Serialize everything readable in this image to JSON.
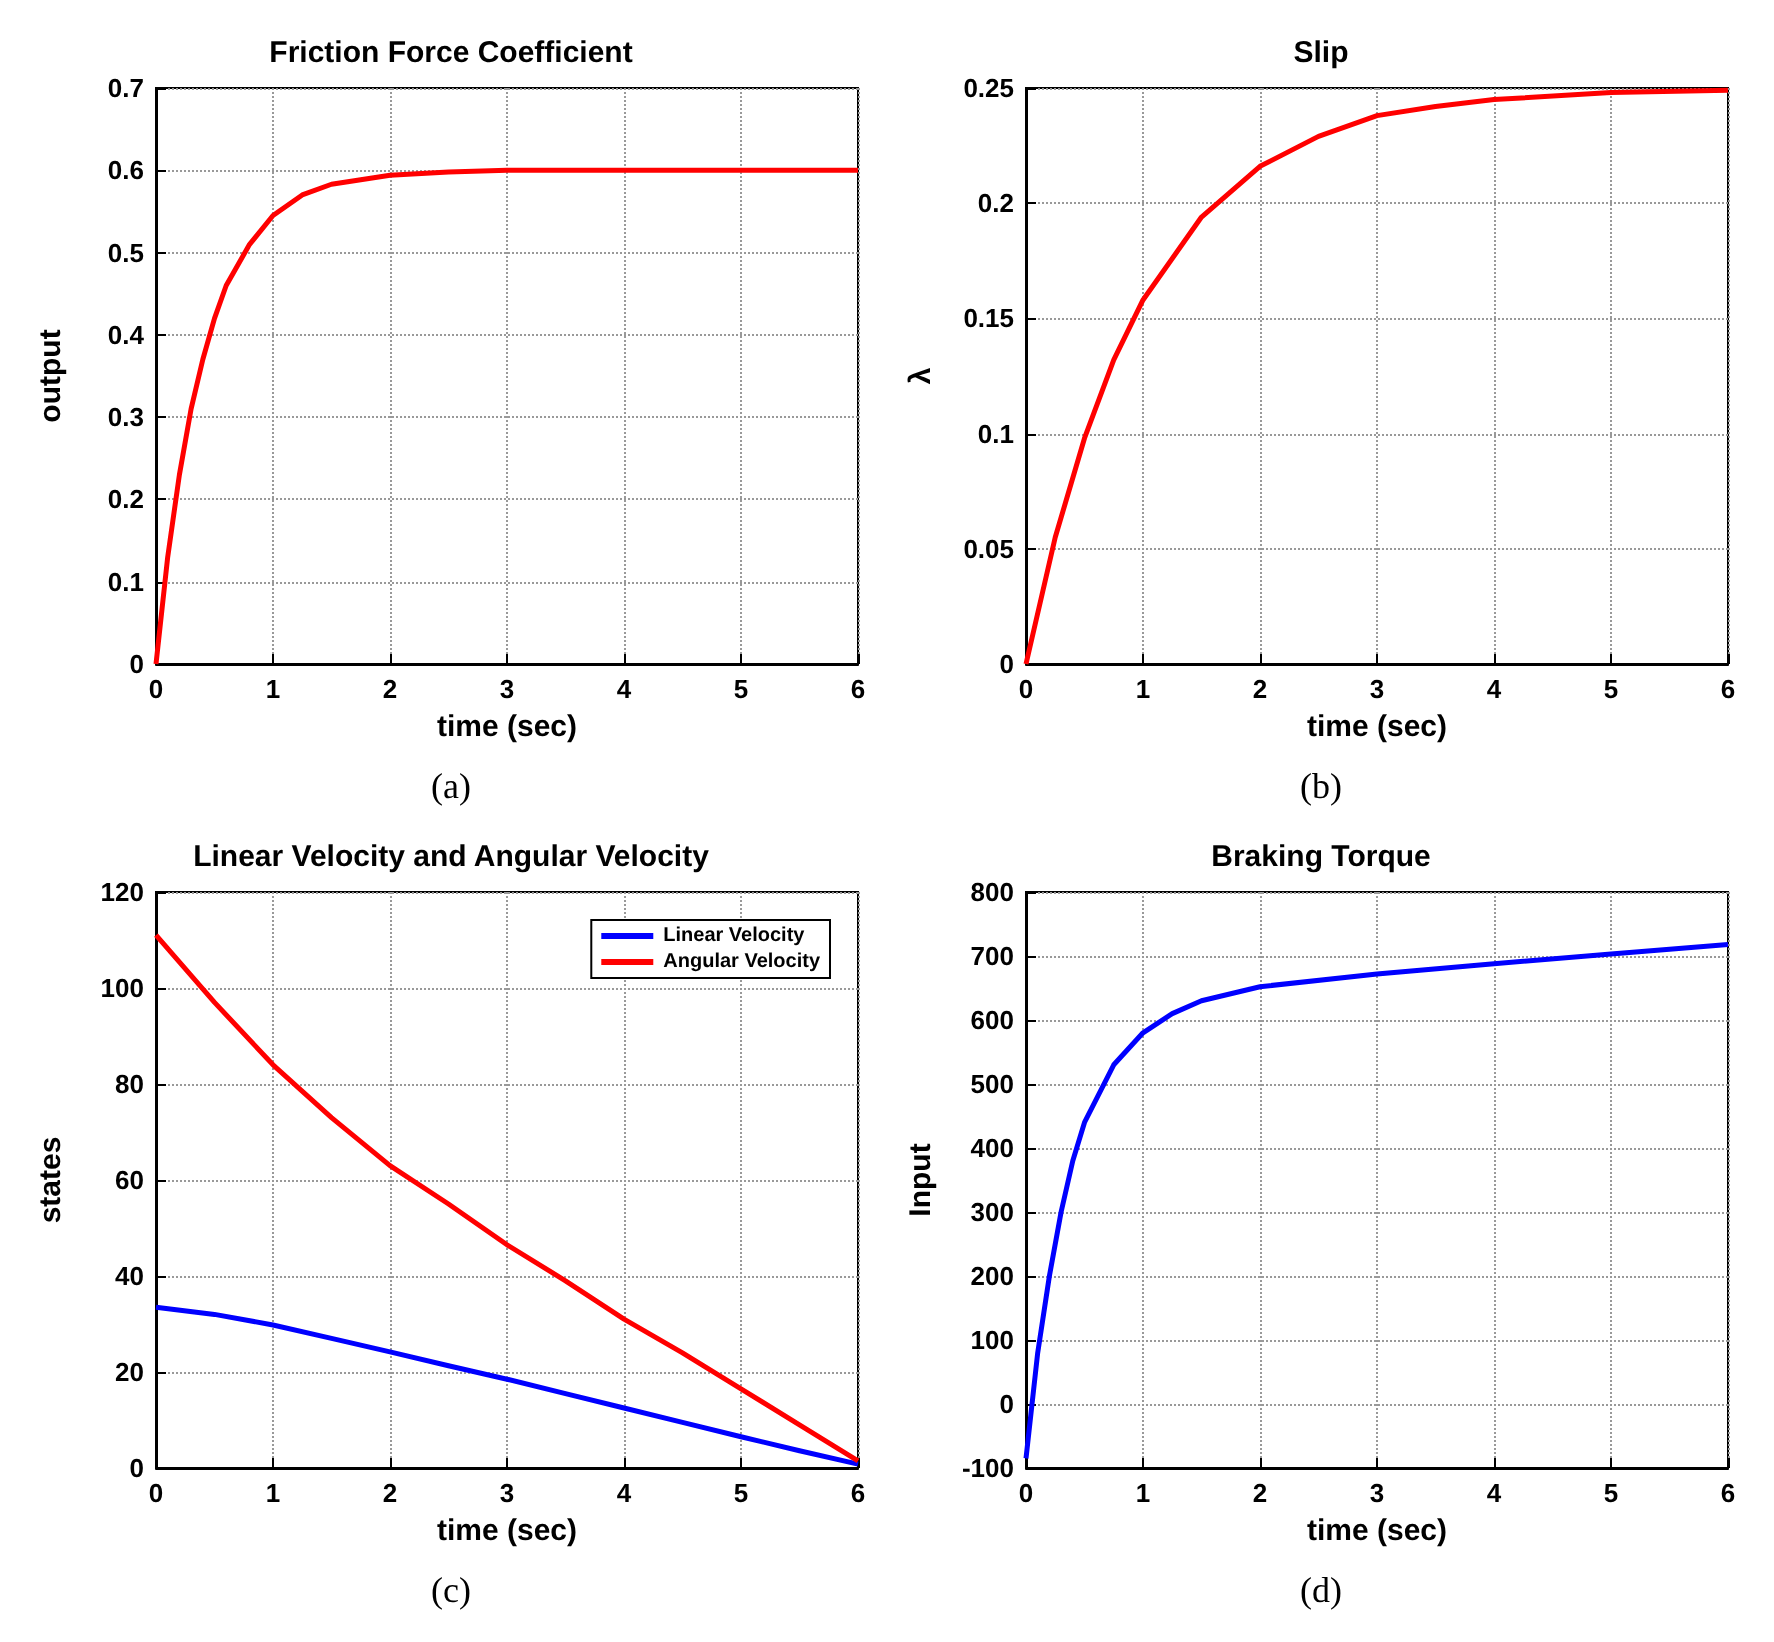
{
  "chart_data": [
    {
      "type": "line",
      "title": "Friction Force Coefficient",
      "xlabel": "time (sec)",
      "ylabel": "output",
      "x": [
        0,
        0.1,
        0.2,
        0.3,
        0.4,
        0.5,
        0.6,
        0.8,
        1,
        1.25,
        1.5,
        2,
        2.5,
        3,
        4,
        5,
        6
      ],
      "series": [
        {
          "color": "#ff0000",
          "values": [
            0,
            0.13,
            0.23,
            0.31,
            0.37,
            0.42,
            0.46,
            0.51,
            0.545,
            0.57,
            0.583,
            0.594,
            0.598,
            0.6,
            0.6,
            0.6,
            0.6
          ]
        }
      ],
      "xlim": [
        0,
        6
      ],
      "xticks": [
        0,
        1,
        2,
        3,
        4,
        5,
        6
      ],
      "ylim": [
        0,
        0.7
      ],
      "yticks": [
        0,
        0.1,
        0.2,
        0.3,
        0.4,
        0.5,
        0.6,
        0.7
      ],
      "grid": true,
      "marker": "none",
      "legend": false,
      "annotations": [
        "(a)"
      ]
    },
    {
      "type": "line",
      "title": "Slip",
      "xlabel": "time (sec)",
      "ylabel": "λ",
      "x": [
        0,
        0.25,
        0.5,
        0.75,
        1,
        1.5,
        2,
        2.5,
        3,
        3.5,
        4,
        5,
        6
      ],
      "series": [
        {
          "color": "#ff0000",
          "values": [
            0,
            0.055,
            0.098,
            0.132,
            0.158,
            0.194,
            0.216,
            0.229,
            0.238,
            0.242,
            0.245,
            0.248,
            0.249
          ]
        }
      ],
      "xlim": [
        0,
        6
      ],
      "xticks": [
        0,
        1,
        2,
        3,
        4,
        5,
        6
      ],
      "ylim": [
        0,
        0.25
      ],
      "yticks": [
        0,
        0.05,
        0.1,
        0.15,
        0.2,
        0.25
      ],
      "grid": true,
      "marker": "none",
      "legend": false,
      "annotations": [
        "(b)"
      ]
    },
    {
      "type": "line",
      "title": "Linear Velocity and Angular Velocity",
      "xlabel": "time (sec)",
      "ylabel": "states",
      "x": [
        0,
        0.5,
        1,
        1.5,
        2,
        2.5,
        3,
        3.5,
        4,
        4.5,
        5,
        5.5,
        6
      ],
      "series": [
        {
          "name": "Linear Velocity",
          "color": "#0000ff",
          "values": [
            33.5,
            32,
            29.8,
            27,
            24.2,
            21.3,
            18.5,
            15.5,
            12.5,
            9.5,
            6.5,
            3.6,
            0.8
          ]
        },
        {
          "name": "Angular Velocity",
          "color": "#ff0000",
          "values": [
            111,
            97,
            84,
            73,
            63,
            55,
            46.5,
            39,
            31,
            24,
            16.5,
            9,
            1.5
          ]
        }
      ],
      "xlim": [
        0,
        6
      ],
      "xticks": [
        0,
        1,
        2,
        3,
        4,
        5,
        6
      ],
      "ylim": [
        0,
        120
      ],
      "yticks": [
        0,
        20,
        40,
        60,
        80,
        100,
        120
      ],
      "grid": true,
      "marker": "none",
      "legend": "top right",
      "annotations": [
        "(c)"
      ]
    },
    {
      "type": "line",
      "title": "Braking Torque",
      "xlabel": "time (sec)",
      "ylabel": "Input",
      "x": [
        0,
        0.1,
        0.2,
        0.3,
        0.4,
        0.5,
        0.75,
        1,
        1.25,
        1.5,
        2,
        3,
        4,
        5,
        6
      ],
      "series": [
        {
          "color": "#0000ff",
          "values": [
            -85,
            80,
            200,
            300,
            380,
            440,
            530,
            580,
            610,
            630,
            652,
            672,
            688,
            703,
            718
          ]
        }
      ],
      "xlim": [
        0,
        6
      ],
      "xticks": [
        0,
        1,
        2,
        3,
        4,
        5,
        6
      ],
      "ylim": [
        -100,
        800
      ],
      "yticks": [
        -100,
        0,
        100,
        200,
        300,
        400,
        500,
        600,
        700,
        800
      ],
      "grid": true,
      "marker": "none",
      "legend": false,
      "annotations": [
        "(d)"
      ]
    }
  ]
}
